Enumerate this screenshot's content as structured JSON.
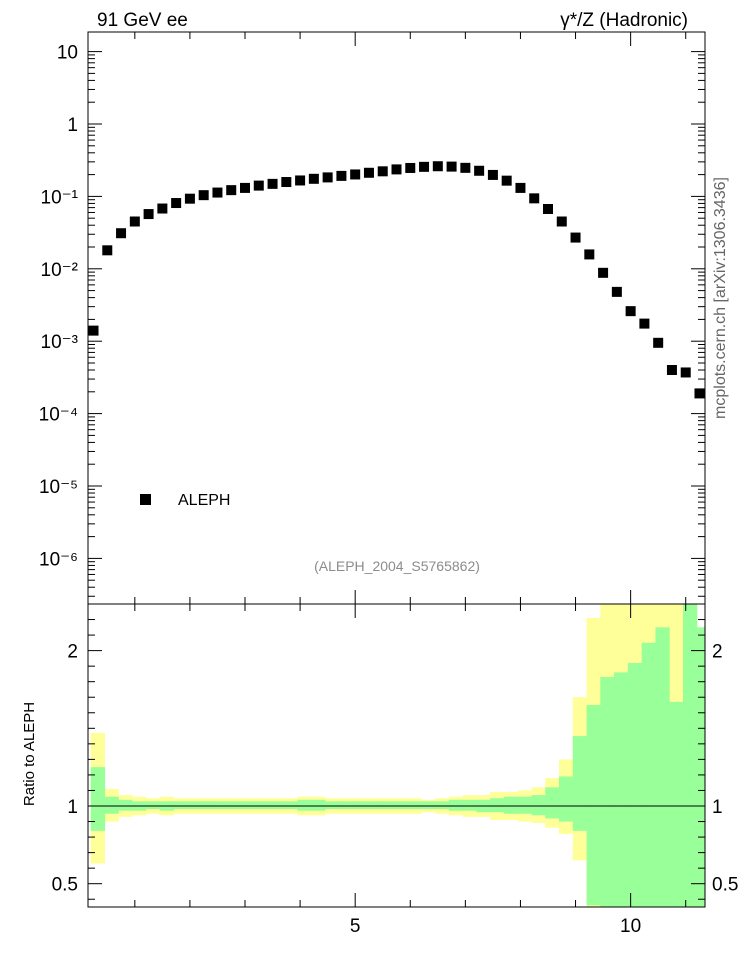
{
  "header": {
    "left": "91 GeV ee",
    "right": "γ*/Z (Hadronic)"
  },
  "watermark": "mcplots.cern.ch [arXiv:1306.3436]",
  "analysis_tag": "(ALEPH_2004_S5765862)",
  "legend": {
    "label": "ALEPH",
    "placement": "lower-left"
  },
  "colors": {
    "data_marker": "#000000",
    "band_inner": "#99ff99",
    "band_outer": "#ffff99",
    "tag": "#8c8c8c"
  },
  "chart_data": [
    {
      "type": "scatter",
      "title": "",
      "xlabel": "",
      "ylabel": "",
      "xlim": [
        0.15,
        11.35
      ],
      "ylim": [
        3e-07,
        20
      ],
      "yscale": "log",
      "ytick_labels": [
        "10",
        "1",
        "10⁻¹",
        "10⁻²",
        "10⁻³",
        "10⁻⁴",
        "10⁻⁵",
        "10⁻⁶"
      ],
      "series": [
        {
          "name": "ALEPH",
          "x": [
            0.25,
            0.5,
            0.75,
            1.0,
            1.25,
            1.5,
            1.75,
            2.0,
            2.25,
            2.5,
            2.75,
            3.0,
            3.25,
            3.5,
            3.75,
            4.0,
            4.25,
            4.5,
            4.75,
            5.0,
            5.25,
            5.5,
            5.75,
            6.0,
            6.25,
            6.5,
            6.75,
            7.0,
            7.25,
            7.5,
            7.75,
            8.0,
            8.25,
            8.5,
            8.75,
            9.0,
            9.25,
            9.5,
            9.75,
            10.0,
            10.25,
            10.5,
            10.75,
            11.0,
            11.25
          ],
          "y": [
            0.0014,
            0.018,
            0.031,
            0.045,
            0.057,
            0.068,
            0.081,
            0.093,
            0.104,
            0.113,
            0.122,
            0.131,
            0.141,
            0.149,
            0.158,
            0.166,
            0.175,
            0.183,
            0.192,
            0.201,
            0.212,
            0.222,
            0.236,
            0.247,
            0.256,
            0.261,
            0.258,
            0.248,
            0.226,
            0.198,
            0.165,
            0.131,
            0.094,
            0.067,
            0.045,
            0.027,
            0.0158,
            0.0088,
            0.0048,
            0.0026,
            0.00175,
            0.00095,
            0.0004,
            0.00037,
            0.00019
          ]
        }
      ]
    },
    {
      "type": "area",
      "title": "",
      "xlabel": "",
      "ylabel": "Ratio to ALEPH",
      "xlim": [
        0.15,
        11.35
      ],
      "ylim": [
        0.35,
        2.3
      ],
      "yticks": [
        0.5,
        1,
        2
      ],
      "ytick_labels": [
        "0.5",
        "1",
        "2"
      ],
      "xticks": [
        5,
        10
      ],
      "xtick_labels": [
        "5",
        "10"
      ],
      "reference_line": 1,
      "bin_edges": [
        0.2,
        0.45,
        0.7,
        0.95,
        1.2,
        1.45,
        1.7,
        1.95,
        2.2,
        2.45,
        2.7,
        2.95,
        3.2,
        3.45,
        3.7,
        3.95,
        4.2,
        4.45,
        4.7,
        4.95,
        5.2,
        5.45,
        5.7,
        5.95,
        6.2,
        6.45,
        6.7,
        6.95,
        7.2,
        7.45,
        7.7,
        7.95,
        8.2,
        8.45,
        8.7,
        8.95,
        9.2,
        9.45,
        9.7,
        9.95,
        10.2,
        10.45,
        10.7,
        10.95,
        11.2,
        11.45
      ],
      "series": [
        {
          "name": "",
          "band": "outer",
          "lower": [
            0.63,
            0.9,
            0.93,
            0.94,
            0.95,
            0.94,
            0.95,
            0.95,
            0.95,
            0.95,
            0.95,
            0.95,
            0.95,
            0.95,
            0.95,
            0.94,
            0.94,
            0.95,
            0.95,
            0.95,
            0.95,
            0.95,
            0.95,
            0.95,
            0.96,
            0.95,
            0.94,
            0.93,
            0.93,
            0.91,
            0.91,
            0.9,
            0.89,
            0.86,
            0.82,
            0.65,
            0.25,
            0.25,
            0.25,
            0.25,
            0.25,
            0.25,
            0.25,
            0.25,
            0.25
          ],
          "upper": [
            1.47,
            1.11,
            1.07,
            1.06,
            1.05,
            1.06,
            1.05,
            1.05,
            1.05,
            1.05,
            1.05,
            1.05,
            1.05,
            1.05,
            1.05,
            1.06,
            1.06,
            1.05,
            1.05,
            1.05,
            1.05,
            1.05,
            1.05,
            1.05,
            1.04,
            1.05,
            1.06,
            1.07,
            1.07,
            1.09,
            1.09,
            1.1,
            1.12,
            1.18,
            1.3,
            1.7,
            2.21,
            2.4,
            2.4,
            2.4,
            2.4,
            2.4,
            2.4,
            2.4,
            2.14
          ]
        },
        {
          "name": "",
          "band": "inner",
          "lower": [
            0.84,
            0.95,
            0.97,
            0.97,
            0.98,
            0.97,
            0.98,
            0.98,
            0.98,
            0.98,
            0.98,
            0.98,
            0.98,
            0.98,
            0.98,
            0.97,
            0.97,
            0.98,
            0.98,
            0.98,
            0.98,
            0.98,
            0.98,
            0.98,
            0.98,
            0.98,
            0.97,
            0.97,
            0.96,
            0.96,
            0.95,
            0.95,
            0.94,
            0.92,
            0.9,
            0.84,
            0.36,
            0.25,
            0.25,
            0.25,
            0.25,
            0.25,
            0.25,
            0.25,
            0.25
          ],
          "upper": [
            1.25,
            1.06,
            1.04,
            1.03,
            1.03,
            1.03,
            1.03,
            1.03,
            1.03,
            1.03,
            1.03,
            1.03,
            1.03,
            1.03,
            1.03,
            1.04,
            1.04,
            1.03,
            1.03,
            1.03,
            1.03,
            1.03,
            1.03,
            1.03,
            1.03,
            1.03,
            1.04,
            1.04,
            1.04,
            1.05,
            1.06,
            1.06,
            1.07,
            1.12,
            1.19,
            1.45,
            1.65,
            1.83,
            1.86,
            1.92,
            2.05,
            2.15,
            1.67,
            2.4,
            2.15
          ]
        }
      ]
    }
  ]
}
